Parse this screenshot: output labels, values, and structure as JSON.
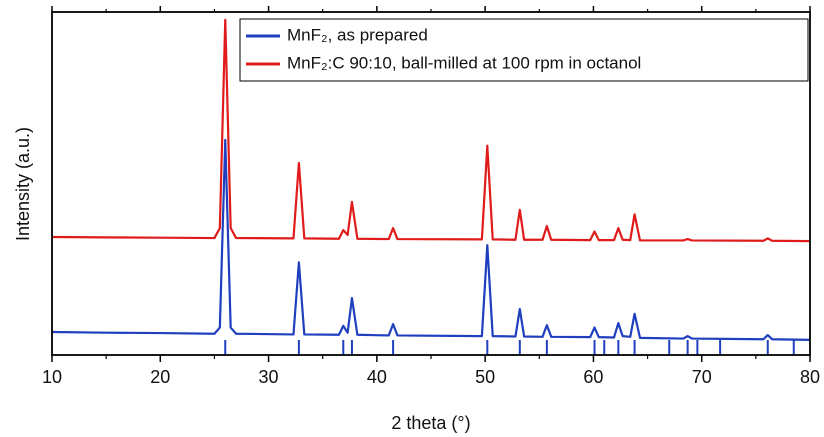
{
  "chart_data": {
    "type": "line",
    "xlabel": "2 theta (°)",
    "ylabel": "Intensity (a.u.)",
    "x": [
      10,
      15,
      20,
      25,
      25.5,
      26.0,
      26.5,
      27,
      32.3,
      32.8,
      33.3,
      36.5,
      36.9,
      37.3,
      37.7,
      38.2,
      41.1,
      41.5,
      41.9,
      49.7,
      50.2,
      50.7,
      52.8,
      53.2,
      53.6,
      55.3,
      55.7,
      56.1,
      59.7,
      60.1,
      60.5,
      61.9,
      62.3,
      62.7,
      63.4,
      63.8,
      64.3,
      68.3,
      68.7,
      69.1,
      75.7,
      76.1,
      76.5,
      80
    ],
    "series": [
      {
        "name": "MnF₂, as prepared",
        "color": "#1f3fbf",
        "values": [
          6.7,
          6.5,
          6.4,
          6.2,
          8,
          62.7,
          8,
          6.2,
          6.0,
          27,
          6.0,
          5.9,
          8.5,
          6.5,
          16.6,
          5.9,
          5.7,
          9,
          5.7,
          5.5,
          32,
          5.5,
          5.4,
          13.4,
          5.4,
          5.3,
          8.7,
          5.3,
          5.2,
          8,
          5.2,
          5.1,
          9.3,
          5.5,
          5.3,
          12,
          5.0,
          4.8,
          5.5,
          4.8,
          4.6,
          5.8,
          4.6,
          4.4
        ]
      },
      {
        "name": "MnF₂:C 90:10, ball-milled at 100 rpm in octanol",
        "color": "#e01b1b",
        "values": [
          34.4,
          34.3,
          34.2,
          34.1,
          37,
          97.7,
          37,
          34.1,
          34,
          56,
          34,
          33.9,
          36.4,
          35,
          44.6,
          33.9,
          33.8,
          37,
          33.8,
          33.7,
          61,
          33.7,
          33.6,
          42.3,
          33.6,
          33.6,
          37.6,
          33.6,
          33.5,
          36,
          33.5,
          33.5,
          37,
          33.6,
          33.5,
          41,
          33.4,
          33.4,
          33.8,
          33.4,
          33.3,
          34,
          33.3,
          33.2
        ]
      }
    ],
    "reference_peaks": {
      "color": "#1f3fbf",
      "x": [
        26.0,
        32.8,
        36.9,
        37.7,
        41.5,
        50.2,
        53.2,
        55.7,
        60.1,
        61.0,
        62.3,
        63.8,
        67.0,
        68.7,
        69.6,
        71.7,
        76.1,
        78.5
      ]
    },
    "xlim": [
      10,
      80
    ],
    "ylim": [
      0,
      100
    ],
    "xticks": [
      10,
      20,
      30,
      40,
      50,
      60,
      70,
      80
    ],
    "xminorticks": [
      15,
      25,
      35,
      45,
      55,
      65,
      75
    ],
    "legend": "upper right"
  }
}
